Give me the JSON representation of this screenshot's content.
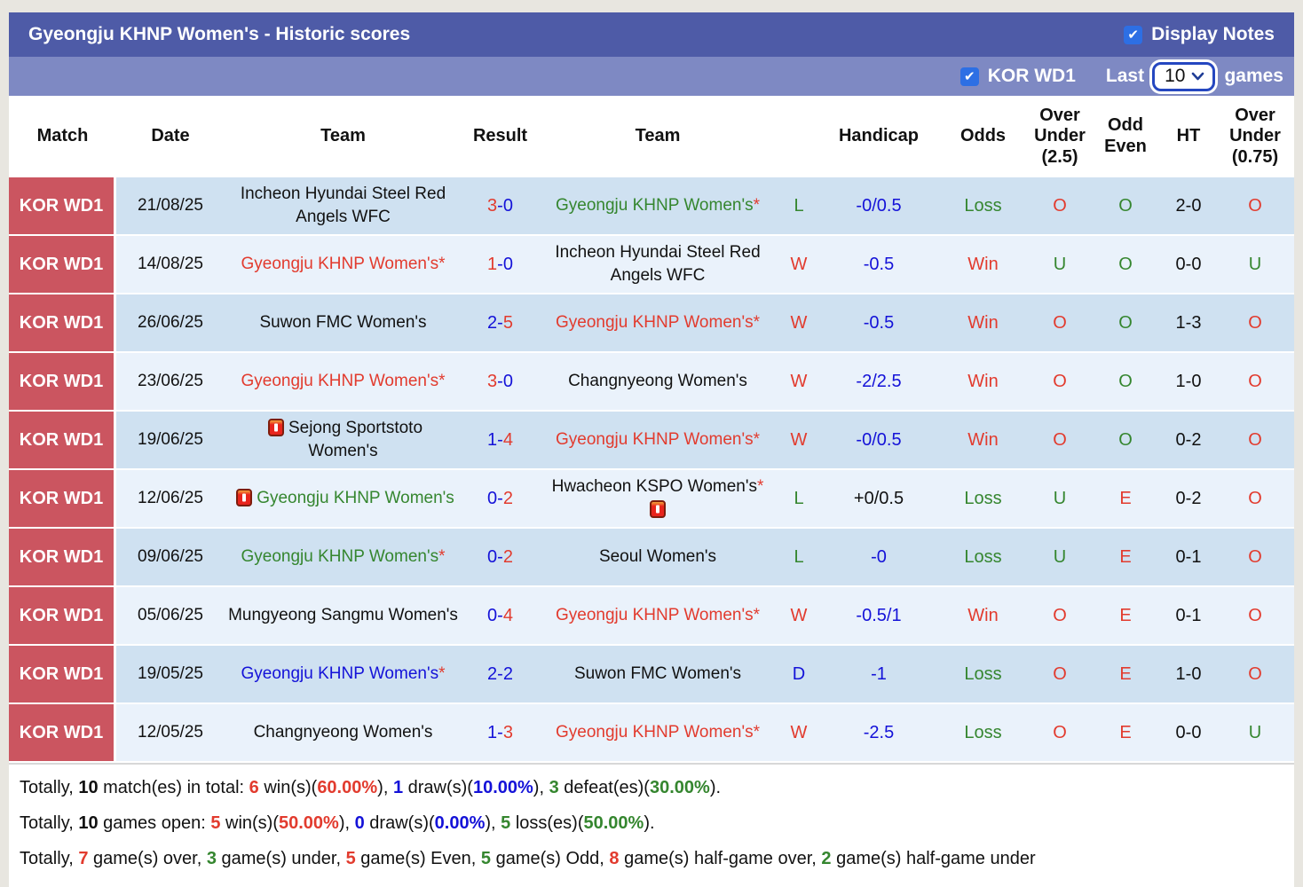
{
  "title_bar": {
    "title": "Gyeongju KHNP Women's - Historic scores",
    "display_notes_label": "Display Notes",
    "display_notes_checked": true
  },
  "filter_bar": {
    "league_label": "KOR WD1",
    "league_checked": true,
    "last_label": "Last",
    "games_count": "10",
    "games_label": "games"
  },
  "table": {
    "headers": {
      "match": "Match",
      "date": "Date",
      "team_home": "Team",
      "result": "Result",
      "team_away": "Team",
      "letter": "",
      "handicap": "Handicap",
      "odds": "Odds",
      "over_under_25": "Over\nUnder\n(2.5)",
      "odd_even": "Odd\nEven",
      "ht": "HT",
      "over_under_075": "Over\nUnder\n(0.75)"
    },
    "rows": [
      {
        "match": "KOR WD1",
        "date": "21/08/25",
        "home": {
          "name": "Incheon Hyundai Steel Red Angels WFC",
          "color": "black",
          "asterisk": false,
          "red_card": null
        },
        "result": {
          "home": "3",
          "away": "0",
          "home_color": "red",
          "away_color": "blue"
        },
        "away": {
          "name": "Gyeongju KHNP Women's",
          "color": "green",
          "asterisk": true,
          "red_card": null
        },
        "letter": {
          "text": "L",
          "color": "green"
        },
        "handicap": {
          "text": "-0/0.5",
          "color": "blue"
        },
        "odds": {
          "text": "Loss",
          "color": "green"
        },
        "over_under_25": {
          "text": "O",
          "color": "red"
        },
        "odd_even": {
          "text": "O",
          "color": "green"
        },
        "ht": "2-0",
        "over_under_075": {
          "text": "O",
          "color": "red"
        }
      },
      {
        "match": "KOR WD1",
        "date": "14/08/25",
        "home": {
          "name": "Gyeongju KHNP Women's",
          "color": "red",
          "asterisk": true,
          "red_card": null
        },
        "result": {
          "home": "1",
          "away": "0",
          "home_color": "red",
          "away_color": "blue"
        },
        "away": {
          "name": "Incheon Hyundai Steel Red Angels WFC",
          "color": "black",
          "asterisk": false,
          "red_card": null
        },
        "letter": {
          "text": "W",
          "color": "red"
        },
        "handicap": {
          "text": "-0.5",
          "color": "blue"
        },
        "odds": {
          "text": "Win",
          "color": "red"
        },
        "over_under_25": {
          "text": "U",
          "color": "green"
        },
        "odd_even": {
          "text": "O",
          "color": "green"
        },
        "ht": "0-0",
        "over_under_075": {
          "text": "U",
          "color": "green"
        }
      },
      {
        "match": "KOR WD1",
        "date": "26/06/25",
        "home": {
          "name": "Suwon FMC Women's",
          "color": "black",
          "asterisk": false,
          "red_card": null
        },
        "result": {
          "home": "2",
          "away": "5",
          "home_color": "blue",
          "away_color": "red"
        },
        "away": {
          "name": "Gyeongju KHNP Women's",
          "color": "red",
          "asterisk": true,
          "red_card": null
        },
        "letter": {
          "text": "W",
          "color": "red"
        },
        "handicap": {
          "text": "-0.5",
          "color": "blue"
        },
        "odds": {
          "text": "Win",
          "color": "red"
        },
        "over_under_25": {
          "text": "O",
          "color": "red"
        },
        "odd_even": {
          "text": "O",
          "color": "green"
        },
        "ht": "1-3",
        "over_under_075": {
          "text": "O",
          "color": "red"
        }
      },
      {
        "match": "KOR WD1",
        "date": "23/06/25",
        "home": {
          "name": "Gyeongju KHNP Women's",
          "color": "red",
          "asterisk": true,
          "red_card": null
        },
        "result": {
          "home": "3",
          "away": "0",
          "home_color": "red",
          "away_color": "blue"
        },
        "away": {
          "name": "Changnyeong Women's",
          "color": "black",
          "asterisk": false,
          "red_card": null
        },
        "letter": {
          "text": "W",
          "color": "red"
        },
        "handicap": {
          "text": "-2/2.5",
          "color": "blue"
        },
        "odds": {
          "text": "Win",
          "color": "red"
        },
        "over_under_25": {
          "text": "O",
          "color": "red"
        },
        "odd_even": {
          "text": "O",
          "color": "green"
        },
        "ht": "1-0",
        "over_under_075": {
          "text": "O",
          "color": "red"
        }
      },
      {
        "match": "KOR WD1",
        "date": "19/06/25",
        "home": {
          "name": "Sejong Sportstoto Women's",
          "color": "black",
          "asterisk": false,
          "red_card": "before"
        },
        "result": {
          "home": "1",
          "away": "4",
          "home_color": "blue",
          "away_color": "red"
        },
        "away": {
          "name": "Gyeongju KHNP Women's",
          "color": "red",
          "asterisk": true,
          "red_card": null
        },
        "letter": {
          "text": "W",
          "color": "red"
        },
        "handicap": {
          "text": "-0/0.5",
          "color": "blue"
        },
        "odds": {
          "text": "Win",
          "color": "red"
        },
        "over_under_25": {
          "text": "O",
          "color": "red"
        },
        "odd_even": {
          "text": "O",
          "color": "green"
        },
        "ht": "0-2",
        "over_under_075": {
          "text": "O",
          "color": "red"
        }
      },
      {
        "match": "KOR WD1",
        "date": "12/06/25",
        "home": {
          "name": "Gyeongju KHNP Women's",
          "color": "green",
          "asterisk": false,
          "red_card": "before"
        },
        "result": {
          "home": "0",
          "away": "2",
          "home_color": "blue",
          "away_color": "red"
        },
        "away": {
          "name": "Hwacheon KSPO Women's",
          "color": "black",
          "asterisk": true,
          "red_card": "after"
        },
        "letter": {
          "text": "L",
          "color": "green"
        },
        "handicap": {
          "text": "+0/0.5",
          "color": "black"
        },
        "odds": {
          "text": "Loss",
          "color": "green"
        },
        "over_under_25": {
          "text": "U",
          "color": "green"
        },
        "odd_even": {
          "text": "E",
          "color": "red"
        },
        "ht": "0-2",
        "over_under_075": {
          "text": "O",
          "color": "red"
        }
      },
      {
        "match": "KOR WD1",
        "date": "09/06/25",
        "home": {
          "name": "Gyeongju KHNP Women's",
          "color": "green",
          "asterisk": true,
          "red_card": null
        },
        "result": {
          "home": "0",
          "away": "2",
          "home_color": "blue",
          "away_color": "red"
        },
        "away": {
          "name": "Seoul Women's",
          "color": "black",
          "asterisk": false,
          "red_card": null
        },
        "letter": {
          "text": "L",
          "color": "green"
        },
        "handicap": {
          "text": "-0",
          "color": "blue"
        },
        "odds": {
          "text": "Loss",
          "color": "green"
        },
        "over_under_25": {
          "text": "U",
          "color": "green"
        },
        "odd_even": {
          "text": "E",
          "color": "red"
        },
        "ht": "0-1",
        "over_under_075": {
          "text": "O",
          "color": "red"
        }
      },
      {
        "match": "KOR WD1",
        "date": "05/06/25",
        "home": {
          "name": "Mungyeong Sangmu Women's",
          "color": "black",
          "asterisk": false,
          "red_card": null
        },
        "result": {
          "home": "0",
          "away": "4",
          "home_color": "blue",
          "away_color": "red"
        },
        "away": {
          "name": "Gyeongju KHNP Women's",
          "color": "red",
          "asterisk": true,
          "red_card": null
        },
        "letter": {
          "text": "W",
          "color": "red"
        },
        "handicap": {
          "text": "-0.5/1",
          "color": "blue"
        },
        "odds": {
          "text": "Win",
          "color": "red"
        },
        "over_under_25": {
          "text": "O",
          "color": "red"
        },
        "odd_even": {
          "text": "E",
          "color": "red"
        },
        "ht": "0-1",
        "over_under_075": {
          "text": "O",
          "color": "red"
        }
      },
      {
        "match": "KOR WD1",
        "date": "19/05/25",
        "home": {
          "name": "Gyeongju KHNP Women's",
          "color": "blue",
          "asterisk": true,
          "red_card": null
        },
        "result": {
          "home": "2",
          "away": "2",
          "home_color": "blue",
          "away_color": "blue"
        },
        "away": {
          "name": "Suwon FMC Women's",
          "color": "black",
          "asterisk": false,
          "red_card": null
        },
        "letter": {
          "text": "D",
          "color": "blue"
        },
        "handicap": {
          "text": "-1",
          "color": "blue"
        },
        "odds": {
          "text": "Loss",
          "color": "green"
        },
        "over_under_25": {
          "text": "O",
          "color": "red"
        },
        "odd_even": {
          "text": "E",
          "color": "red"
        },
        "ht": "1-0",
        "over_under_075": {
          "text": "O",
          "color": "red"
        }
      },
      {
        "match": "KOR WD1",
        "date": "12/05/25",
        "home": {
          "name": "Changnyeong Women's",
          "color": "black",
          "asterisk": false,
          "red_card": null
        },
        "result": {
          "home": "1",
          "away": "3",
          "home_color": "blue",
          "away_color": "red"
        },
        "away": {
          "name": "Gyeongju KHNP Women's",
          "color": "red",
          "asterisk": true,
          "red_card": null
        },
        "letter": {
          "text": "W",
          "color": "red"
        },
        "handicap": {
          "text": "-2.5",
          "color": "blue"
        },
        "odds": {
          "text": "Loss",
          "color": "green"
        },
        "over_under_25": {
          "text": "O",
          "color": "red"
        },
        "odd_even": {
          "text": "E",
          "color": "red"
        },
        "ht": "0-0",
        "over_under_075": {
          "text": "U",
          "color": "green"
        }
      }
    ]
  },
  "summary": {
    "lines": [
      [
        {
          "t": "Totally, "
        },
        {
          "t": "10",
          "b": true
        },
        {
          "t": " match(es) in total: "
        },
        {
          "t": "6",
          "c": "red",
          "b": true
        },
        {
          "t": " win(s)("
        },
        {
          "t": "60.00%",
          "c": "red",
          "b": true
        },
        {
          "t": "), "
        },
        {
          "t": "1",
          "c": "blue",
          "b": true
        },
        {
          "t": " draw(s)("
        },
        {
          "t": "10.00%",
          "c": "blue",
          "b": true
        },
        {
          "t": "), "
        },
        {
          "t": "3",
          "c": "green",
          "b": true
        },
        {
          "t": " defeat(es)("
        },
        {
          "t": "30.00%",
          "c": "green",
          "b": true
        },
        {
          "t": ")."
        }
      ],
      [
        {
          "t": "Totally, "
        },
        {
          "t": "10",
          "b": true
        },
        {
          "t": " games open: "
        },
        {
          "t": "5",
          "c": "red",
          "b": true
        },
        {
          "t": " win(s)("
        },
        {
          "t": "50.00%",
          "c": "red",
          "b": true
        },
        {
          "t": "), "
        },
        {
          "t": "0",
          "c": "blue",
          "b": true
        },
        {
          "t": " draw(s)("
        },
        {
          "t": "0.00%",
          "c": "blue",
          "b": true
        },
        {
          "t": "), "
        },
        {
          "t": "5",
          "c": "green",
          "b": true
        },
        {
          "t": " loss(es)("
        },
        {
          "t": "50.00%",
          "c": "green",
          "b": true
        },
        {
          "t": ")."
        }
      ],
      [
        {
          "t": "Totally, "
        },
        {
          "t": "7",
          "c": "red",
          "b": true
        },
        {
          "t": " game(s) over, "
        },
        {
          "t": "3",
          "c": "green",
          "b": true
        },
        {
          "t": " game(s) under, "
        },
        {
          "t": "5",
          "c": "red",
          "b": true
        },
        {
          "t": " game(s) Even, "
        },
        {
          "t": "5",
          "c": "green",
          "b": true
        },
        {
          "t": " game(s) Odd, "
        },
        {
          "t": "8",
          "c": "red",
          "b": true
        },
        {
          "t": " game(s) half-game over, "
        },
        {
          "t": "2",
          "c": "green",
          "b": true
        },
        {
          "t": " game(s) half-game under"
        }
      ]
    ]
  },
  "icons": {
    "checkmark": "checkmark-icon",
    "chevron_down": "chevron-down-icon",
    "red_card": "red-card-icon"
  },
  "colors": {
    "accent_red": "#e23b2e",
    "accent_green": "#35862f",
    "accent_blue": "#1412d8",
    "text_black": "#111111",
    "title_bar_bg": "#4e5ba7",
    "filter_bar_bg": "#7e89c3",
    "match_cell_bg": "#cb5560",
    "row_dark_bg": "#cfe1f1",
    "row_light_bg": "#eaf2fb",
    "checkbox_blue": "#2d6fe4",
    "select_border": "#2547c0",
    "page_bg": "#e8e6e0",
    "panel_bg": "#ffffff"
  }
}
